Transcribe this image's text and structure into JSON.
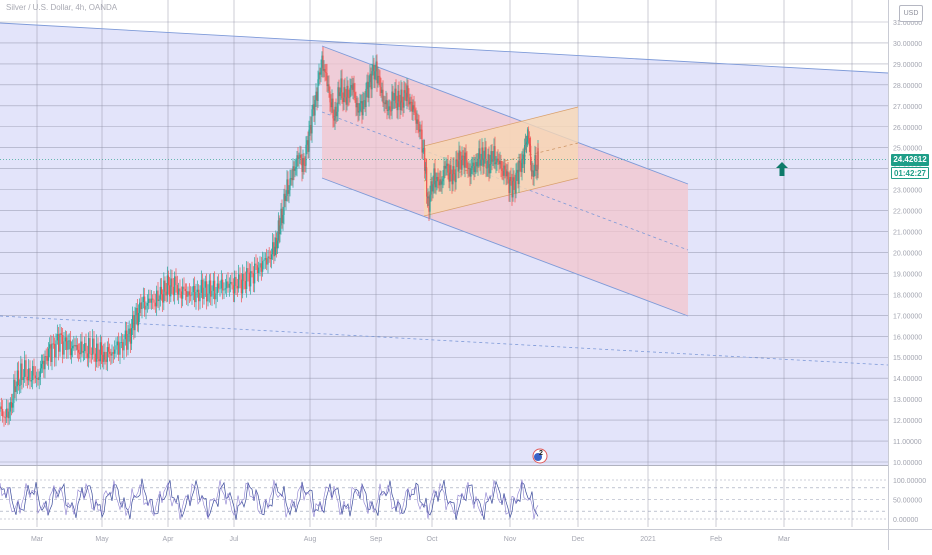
{
  "chart_data": [
    {
      "type": "line",
      "title": "Silver / U.S. Dollar, 4h, OANDA",
      "currency": "USD",
      "ylim": [
        9.5,
        31.3
      ],
      "y_ticks": [
        "10.00000",
        "11.00000",
        "12.00000",
        "13.00000",
        "14.00000",
        "15.00000",
        "16.00000",
        "17.00000",
        "18.00000",
        "19.00000",
        "20.00000",
        "21.00000",
        "22.00000",
        "23.00000",
        "24.00000",
        "25.00000",
        "26.00000",
        "27.00000",
        "28.00000",
        "29.00000",
        "30.00000",
        "31.00000"
      ],
      "x_ticks": [
        "Mar",
        "May",
        "Apr",
        "Jul",
        "Aug",
        "Sep",
        "Oct",
        "Nov",
        "Dec",
        "2021",
        "Feb",
        "Mar"
      ],
      "x_tick_positions_note": "",
      "current_price": "24.42612",
      "countdown": "01:42:27",
      "close_series": [
        {
          "x": 0,
          "y": 12.4
        },
        {
          "x": 8,
          "y": 12.1
        },
        {
          "x": 15,
          "y": 13.6
        },
        {
          "x": 22,
          "y": 14.3
        },
        {
          "x": 30,
          "y": 14.2
        },
        {
          "x": 38,
          "y": 14.1
        },
        {
          "x": 45,
          "y": 15.0
        },
        {
          "x": 52,
          "y": 15.4
        },
        {
          "x": 60,
          "y": 15.8
        },
        {
          "x": 68,
          "y": 15.5
        },
        {
          "x": 75,
          "y": 15.4
        },
        {
          "x": 82,
          "y": 15.3
        },
        {
          "x": 90,
          "y": 15.4
        },
        {
          "x": 98,
          "y": 15.2
        },
        {
          "x": 105,
          "y": 15.1
        },
        {
          "x": 112,
          "y": 15.3
        },
        {
          "x": 120,
          "y": 15.6
        },
        {
          "x": 128,
          "y": 15.9
        },
        {
          "x": 135,
          "y": 16.8
        },
        {
          "x": 142,
          "y": 17.5
        },
        {
          "x": 150,
          "y": 17.6
        },
        {
          "x": 158,
          "y": 17.8
        },
        {
          "x": 165,
          "y": 18.3
        },
        {
          "x": 172,
          "y": 18.5
        },
        {
          "x": 180,
          "y": 18.2
        },
        {
          "x": 188,
          "y": 18.1
        },
        {
          "x": 196,
          "y": 18.0
        },
        {
          "x": 204,
          "y": 18.2
        },
        {
          "x": 212,
          "y": 18.1
        },
        {
          "x": 220,
          "y": 18.3
        },
        {
          "x": 228,
          "y": 18.4
        },
        {
          "x": 236,
          "y": 18.5
        },
        {
          "x": 244,
          "y": 18.7
        },
        {
          "x": 252,
          "y": 19.0
        },
        {
          "x": 260,
          "y": 19.4
        },
        {
          "x": 268,
          "y": 19.7
        },
        {
          "x": 275,
          "y": 20.2
        },
        {
          "x": 280,
          "y": 21.3
        },
        {
          "x": 286,
          "y": 22.8
        },
        {
          "x": 292,
          "y": 23.6
        },
        {
          "x": 298,
          "y": 24.6
        },
        {
          "x": 304,
          "y": 24.2
        },
        {
          "x": 310,
          "y": 26.0
        },
        {
          "x": 316,
          "y": 27.5
        },
        {
          "x": 322,
          "y": 29.2
        },
        {
          "x": 328,
          "y": 27.9
        },
        {
          "x": 334,
          "y": 26.3
        },
        {
          "x": 340,
          "y": 27.8
        },
        {
          "x": 346,
          "y": 27.3
        },
        {
          "x": 352,
          "y": 28.0
        },
        {
          "x": 358,
          "y": 26.8
        },
        {
          "x": 364,
          "y": 27.2
        },
        {
          "x": 370,
          "y": 28.3
        },
        {
          "x": 376,
          "y": 28.8
        },
        {
          "x": 382,
          "y": 27.5
        },
        {
          "x": 388,
          "y": 26.7
        },
        {
          "x": 394,
          "y": 27.4
        },
        {
          "x": 400,
          "y": 27.1
        },
        {
          "x": 406,
          "y": 27.6
        },
        {
          "x": 412,
          "y": 27.0
        },
        {
          "x": 418,
          "y": 26.2
        },
        {
          "x": 424,
          "y": 24.8
        },
        {
          "x": 428,
          "y": 22.3
        },
        {
          "x": 434,
          "y": 23.6
        },
        {
          "x": 440,
          "y": 23.2
        },
        {
          "x": 446,
          "y": 24.1
        },
        {
          "x": 452,
          "y": 23.5
        },
        {
          "x": 458,
          "y": 24.3
        },
        {
          "x": 464,
          "y": 24.5
        },
        {
          "x": 470,
          "y": 23.9
        },
        {
          "x": 476,
          "y": 24.3
        },
        {
          "x": 482,
          "y": 24.7
        },
        {
          "x": 488,
          "y": 24.2
        },
        {
          "x": 494,
          "y": 24.6
        },
        {
          "x": 500,
          "y": 24.1
        },
        {
          "x": 506,
          "y": 23.7
        },
        {
          "x": 512,
          "y": 23.0
        },
        {
          "x": 518,
          "y": 23.8
        },
        {
          "x": 524,
          "y": 24.7
        },
        {
          "x": 528,
          "y": 25.8
        },
        {
          "x": 532,
          "y": 23.8
        },
        {
          "x": 538,
          "y": 24.4
        }
      ]
    },
    {
      "type": "line",
      "title": "",
      "ylim": [
        -5,
        110
      ],
      "y_ticks": [
        "100.00000",
        "50.00000",
        "0.00000"
      ],
      "levels": [
        100,
        80,
        50,
        20,
        0
      ]
    }
  ],
  "colors": {
    "background_fill": "#e3e4fa",
    "grid": "#8d8fa4",
    "up": "#26a69a",
    "down": "#ef5350",
    "channel_fill": "#f3c6cc",
    "channel_line": "#7e9ad8",
    "box_fill": "#f7d7b4",
    "price_label": "#1f9e88",
    "arrow": "#0e7a6a",
    "oscillator": "#5c6bb0"
  },
  "icons": {
    "arrow": "up-arrow-icon",
    "event": "earnings-event-icon"
  },
  "event_label": "2"
}
